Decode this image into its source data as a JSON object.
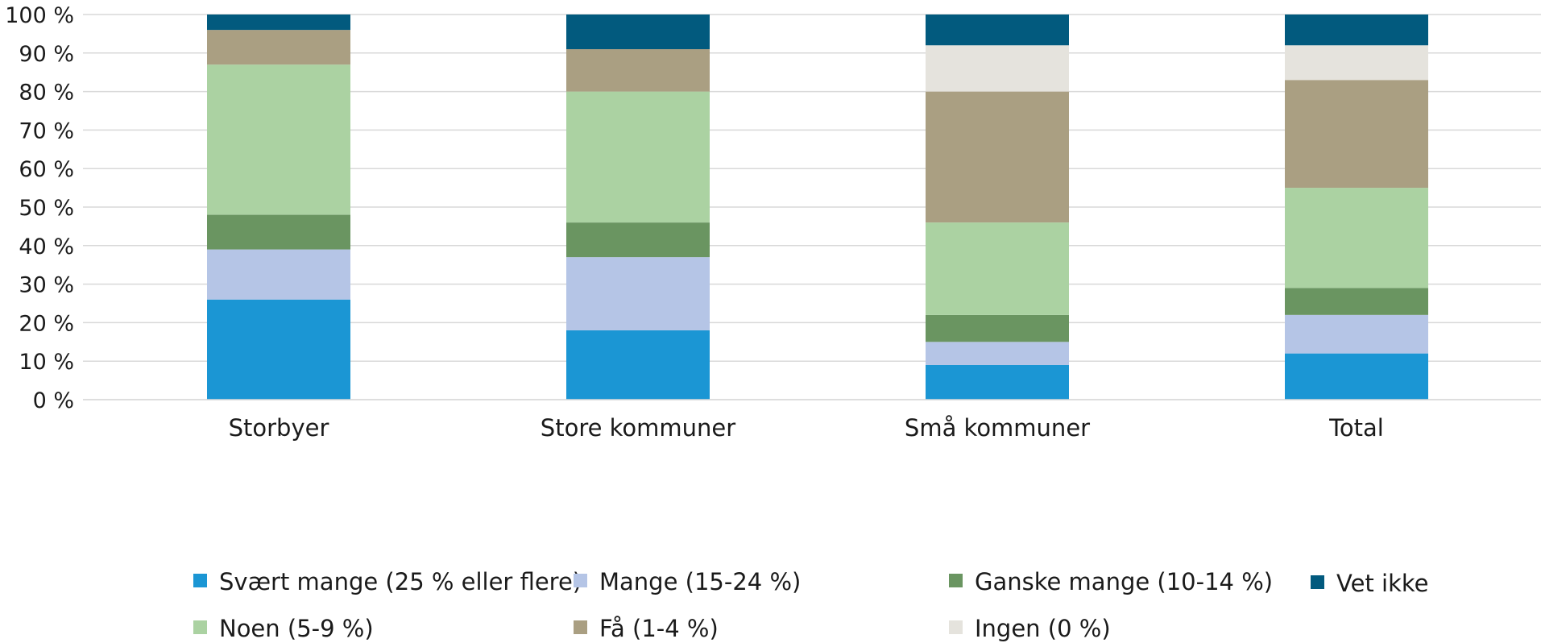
{
  "chart_data": {
    "type": "bar",
    "stacked": true,
    "categories": [
      "Storbyer",
      "Store kommuner",
      "Små kommuner",
      "Total"
    ],
    "ylim": [
      0,
      100
    ],
    "yticks": [
      "0 %",
      "10 %",
      "20 %",
      "30 %",
      "40 %",
      "50 %",
      "60 %",
      "70 %",
      "80 %",
      "90 %",
      "100 %"
    ],
    "grid": true,
    "legend_position": "bottom",
    "series": [
      {
        "name": "Svært mange (25 % eller flere)",
        "color": "#1b96d4",
        "values": [
          26,
          18,
          9,
          12
        ]
      },
      {
        "name": "Mange (15-24 %)",
        "color": "#b5c5e6",
        "values": [
          13,
          19,
          6,
          10
        ]
      },
      {
        "name": "Ganske mange (10-14 %)",
        "color": "#6a9561",
        "values": [
          9,
          9,
          7,
          7
        ]
      },
      {
        "name": "Noen (5-9 %)",
        "color": "#abd2a2",
        "values": [
          39,
          34,
          24,
          26
        ]
      },
      {
        "name": "Få (1-4 %)",
        "color": "#aa9f82",
        "values": [
          9,
          11,
          34,
          28
        ]
      },
      {
        "name": "Ingen (0 %)",
        "color": "#e5e3dd",
        "values": [
          0,
          0,
          12,
          9
        ]
      },
      {
        "name": "Vet ikke",
        "color": "#025a7e",
        "values": [
          4,
          9,
          8,
          8
        ]
      }
    ]
  }
}
